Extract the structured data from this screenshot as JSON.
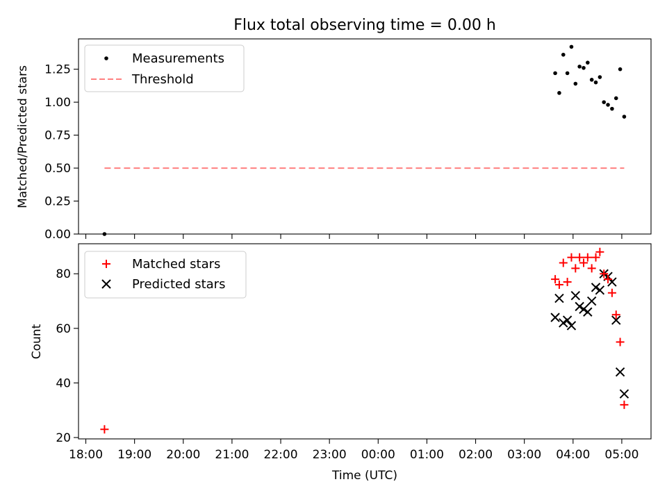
{
  "title": "Flux total observing time = 0.00 h",
  "chart_data": [
    {
      "type": "scatter",
      "ylabel": "Matched/Predicted stars",
      "ylim": [
        0,
        1.48
      ],
      "yticks": [
        0,
        0.25,
        0.5,
        0.75,
        1.0,
        1.25
      ],
      "ytick_labels": [
        "0.00",
        "0.25",
        "0.50",
        "0.75",
        "1.00",
        "1.25"
      ],
      "legend_position": "top-left",
      "series": [
        {
          "name": "Measurements",
          "color": "#000000",
          "marker": "dot",
          "x": [
            "18:23",
            "03:38",
            "03:43",
            "03:48",
            "03:53",
            "03:58",
            "04:03",
            "04:08",
            "04:13",
            "04:18",
            "04:23",
            "04:28",
            "04:33",
            "04:38",
            "04:43",
            "04:48",
            "04:53",
            "04:58",
            "05:03"
          ],
          "y": [
            0.0,
            1.22,
            1.07,
            1.36,
            1.22,
            1.42,
            1.14,
            1.27,
            1.26,
            1.3,
            1.17,
            1.15,
            1.19,
            1.0,
            0.98,
            0.95,
            1.03,
            1.25,
            0.89
          ]
        },
        {
          "name": "Threshold",
          "color": "#ff7f7f",
          "style": "dashed",
          "x": [
            "18:23",
            "05:03"
          ],
          "y": [
            0.5,
            0.5
          ]
        }
      ]
    },
    {
      "type": "scatter",
      "xlabel": "Time (UTC)",
      "ylabel": "Count",
      "ylim": [
        19.5,
        91
      ],
      "yticks": [
        20,
        40,
        60,
        80
      ],
      "ytick_labels": [
        "20",
        "40",
        "60",
        "80"
      ],
      "legend_position": "top-left",
      "series": [
        {
          "name": "Matched stars",
          "color": "#ff0000",
          "marker": "plus",
          "x": [
            "18:23",
            "03:38",
            "03:43",
            "03:48",
            "03:53",
            "03:58",
            "04:03",
            "04:08",
            "04:13",
            "04:18",
            "04:23",
            "04:28",
            "04:33",
            "04:38",
            "04:43",
            "04:48",
            "04:53",
            "04:58",
            "05:03"
          ],
          "y": [
            23,
            78,
            76,
            84,
            77,
            86,
            82,
            86,
            84,
            86,
            82,
            86,
            88,
            80,
            78,
            73,
            65,
            55,
            32
          ]
        },
        {
          "name": "Predicted stars",
          "color": "#000000",
          "marker": "x",
          "x": [
            "03:38",
            "03:43",
            "03:48",
            "03:53",
            "03:58",
            "04:03",
            "04:08",
            "04:13",
            "04:18",
            "04:23",
            "04:28",
            "04:33",
            "04:38",
            "04:43",
            "04:48",
            "04:53",
            "04:58",
            "05:03"
          ],
          "y": [
            64,
            71,
            62,
            63,
            61,
            72,
            68,
            67,
            66,
            70,
            75,
            74,
            80,
            79,
            77,
            63,
            44,
            36
          ]
        }
      ]
    }
  ],
  "x_axis": {
    "xlim": [
      "17:51",
      "05:36"
    ],
    "ticks": [
      "18:00",
      "19:00",
      "20:00",
      "21:00",
      "22:00",
      "23:00",
      "00:00",
      "01:00",
      "02:00",
      "03:00",
      "04:00",
      "05:00"
    ]
  }
}
